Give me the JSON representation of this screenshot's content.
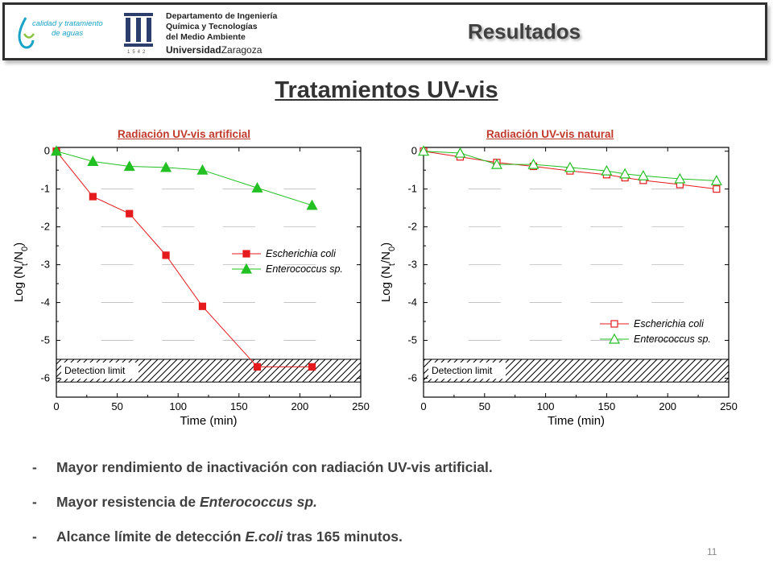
{
  "header": {
    "logo_left_line1": "calidad y tratamiento",
    "logo_left_line2": "de aguas",
    "dept_line1": "Departamento de Ingeniería",
    "dept_line2": "Química y Tecnologías",
    "dept_line3": "del Medio Ambiente",
    "univ_bold": "Universidad",
    "univ_regular": "Zaragoza",
    "seal_year": "1542",
    "section_title": "Resultados"
  },
  "page_title": "Tratamientos UV-vis",
  "colors": {
    "series1": "#e41a1c",
    "series2": "#22c022",
    "chart_title": "#c0392b"
  },
  "chart_data": [
    {
      "type": "line",
      "title": "Radiación UV-vis artificial",
      "xlabel": "Time (min)",
      "ylabel_parts": [
        "Log (N",
        "t",
        "/N",
        "0",
        ")"
      ],
      "xlim": [
        0,
        250
      ],
      "ylim": [
        -6.5,
        0.1
      ],
      "xticks": [
        0,
        50,
        100,
        150,
        200,
        250
      ],
      "yticks": [
        0,
        -1,
        -2,
        -3,
        -4,
        -5,
        -6
      ],
      "detection_limit_label": "Detection limit",
      "detection_limit_band": [
        -6.1,
        -5.5
      ],
      "legend": "right-middle",
      "marker_style": "filled",
      "series": [
        {
          "name": "Escherichia coli",
          "marker": "square",
          "x": [
            0,
            30,
            60,
            90,
            120,
            165,
            210
          ],
          "y": [
            0,
            -1.2,
            -1.65,
            -2.75,
            -4.1,
            -5.7,
            -5.7
          ]
        },
        {
          "name": "Enterococcus sp.",
          "marker": "triangle",
          "x": [
            0,
            30,
            60,
            90,
            120,
            165,
            210
          ],
          "y": [
            0,
            -0.27,
            -0.4,
            -0.43,
            -0.5,
            -0.97,
            -1.43
          ]
        }
      ]
    },
    {
      "type": "line",
      "title": "Radiación UV-vis natural",
      "xlabel": "Time (min)",
      "ylabel_parts": [
        "Log (N",
        "t",
        "/N",
        "0",
        ")"
      ],
      "xlim": [
        0,
        250
      ],
      "ylim": [
        -6.5,
        0.1
      ],
      "xticks": [
        0,
        50,
        100,
        150,
        200,
        250
      ],
      "yticks": [
        0,
        -1,
        -2,
        -3,
        -4,
        -5,
        -6
      ],
      "detection_limit_label": "Detection limit",
      "detection_limit_band": [
        -6.1,
        -5.5
      ],
      "legend": "bottom-right",
      "marker_style": "open",
      "series": [
        {
          "name": "Escherichia coli",
          "marker": "square",
          "x": [
            0,
            30,
            60,
            90,
            120,
            150,
            165,
            180,
            210,
            240
          ],
          "y": [
            0,
            -0.15,
            -0.3,
            -0.4,
            -0.52,
            -0.62,
            -0.7,
            -0.77,
            -0.88,
            -1.0
          ]
        },
        {
          "name": "Enterococcus sp.",
          "marker": "triangle",
          "x": [
            0,
            30,
            60,
            90,
            120,
            150,
            165,
            180,
            210,
            240
          ],
          "y": [
            0,
            -0.05,
            -0.35,
            -0.35,
            -0.43,
            -0.52,
            -0.6,
            -0.65,
            -0.73,
            -0.78
          ]
        }
      ]
    }
  ],
  "bullets": [
    {
      "dash": "-",
      "parts": [
        {
          "text": "Mayor rendimiento de inactivación con radiación UV-vis artificial.",
          "italic": false
        }
      ]
    },
    {
      "dash": "-",
      "parts": [
        {
          "text": "Mayor resistencia de ",
          "italic": false
        },
        {
          "text": "Enterococcus sp.",
          "italic": true
        }
      ]
    },
    {
      "dash": "-",
      "parts": [
        {
          "text": "Alcance límite de detección ",
          "italic": false
        },
        {
          "text": "E.coli",
          "italic": true
        },
        {
          "text": " tras 165 minutos.",
          "italic": false
        }
      ]
    }
  ],
  "page_number": "11"
}
